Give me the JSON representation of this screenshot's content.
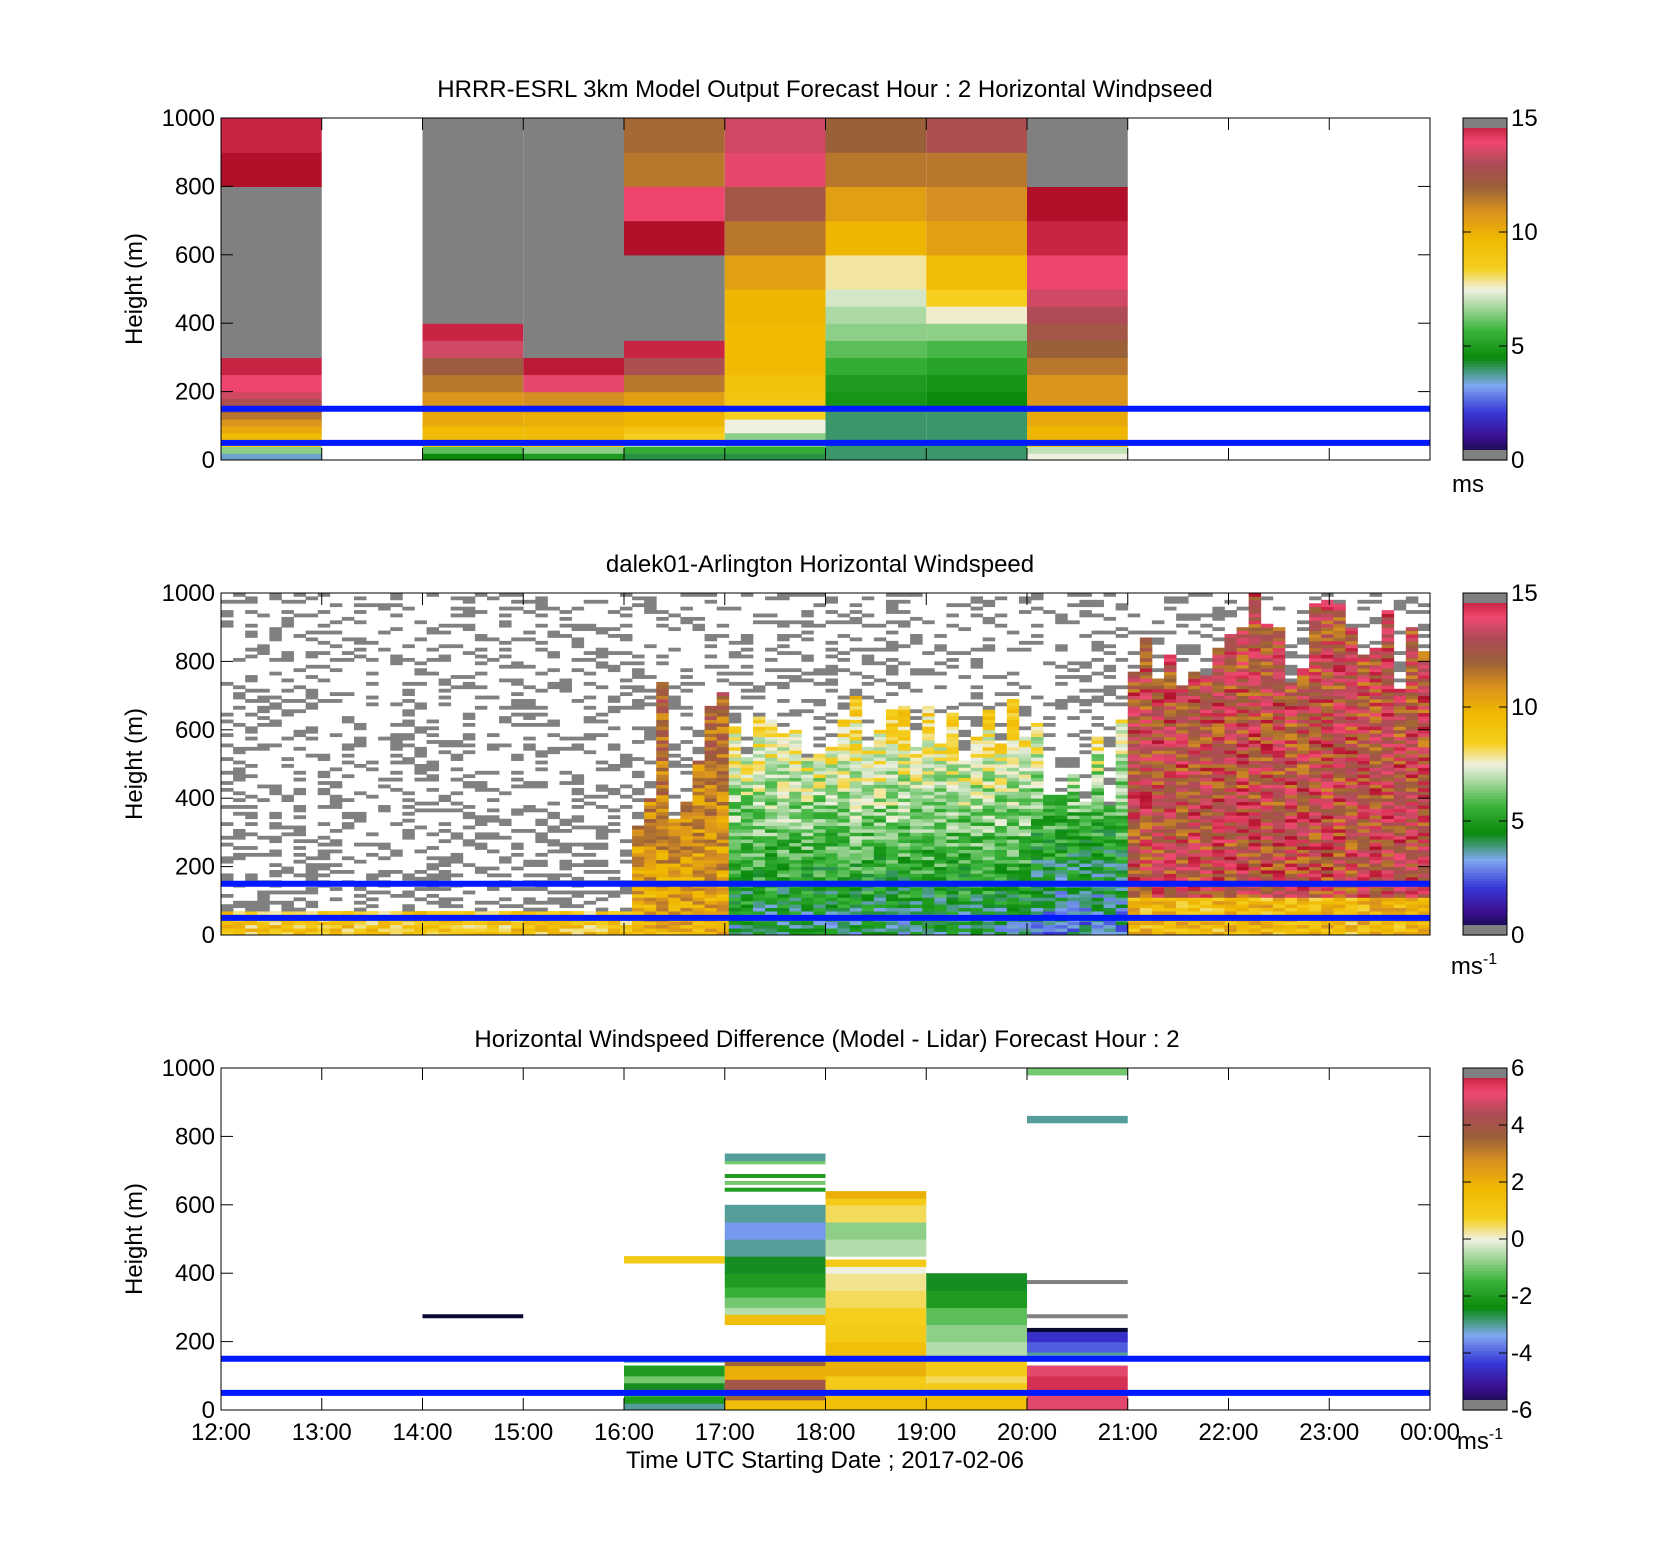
{
  "xlabel": "Time UTC  Starting Date ; 2017-02-06",
  "x_ticks": [
    "12:00",
    "13:00",
    "14:00",
    "15:00",
    "16:00",
    "17:00",
    "18:00",
    "19:00",
    "20:00",
    "21:00",
    "22:00",
    "23:00",
    "00:00"
  ],
  "reference_lines": {
    "heights_m": [
      150,
      50
    ],
    "color": "#0019ff"
  },
  "chart_data": [
    {
      "type": "heatmap",
      "title": "HRRR-ESRL 3km Model Output   Forecast Hour : 2 Horizontal Windpseed",
      "ylabel": "Height (m)",
      "ylim": [
        0,
        1000
      ],
      "y_ticks": [
        "0",
        "200",
        "400",
        "600",
        "800",
        "1000"
      ],
      "colorbar": {
        "min": 0,
        "max": 15,
        "ticks": [
          "0",
          "5",
          "10",
          "15"
        ],
        "unit": "ms",
        "unit_sup": ""
      },
      "na_color": "#808080",
      "columns": [
        {
          "hour": 12,
          "cells": [
            [
              0,
              20,
              3.5
            ],
            [
              20,
              40,
              6.5
            ],
            [
              40,
              60,
              8.5
            ],
            [
              60,
              80,
              9.5
            ],
            [
              80,
              100,
              10.2
            ],
            [
              100,
              120,
              10.8
            ],
            [
              120,
              140,
              11.5
            ],
            [
              140,
              160,
              12.5
            ],
            [
              160,
              180,
              12.8
            ],
            [
              180,
              200,
              13.5
            ],
            [
              200,
              250,
              14
            ],
            [
              250,
              300,
              14.6
            ],
            [
              300,
              800,
              null
            ],
            [
              800,
              900,
              15
            ],
            [
              900,
              1000,
              14.6
            ]
          ]
        },
        {
          "hour": 14,
          "cells": [
            [
              0,
              20,
              4.5
            ],
            [
              20,
              40,
              6
            ],
            [
              40,
              60,
              8.5
            ],
            [
              60,
              100,
              9.5
            ],
            [
              100,
              140,
              10.2
            ],
            [
              140,
              200,
              10.8
            ],
            [
              200,
              250,
              11.5
            ],
            [
              250,
              300,
              12.2
            ],
            [
              300,
              350,
              13.5
            ],
            [
              350,
              400,
              14.6
            ],
            [
              400,
              1000,
              null
            ]
          ]
        },
        {
          "hour": 15,
          "cells": [
            [
              0,
              20,
              5
            ],
            [
              20,
              40,
              6.5
            ],
            [
              40,
              60,
              8.5
            ],
            [
              60,
              100,
              9.5
            ],
            [
              100,
              140,
              10
            ],
            [
              140,
              200,
              11
            ],
            [
              200,
              250,
              13.8
            ],
            [
              250,
              300,
              14.8
            ],
            [
              300,
              1000,
              null
            ]
          ]
        },
        {
          "hour": 16,
          "cells": [
            [
              0,
              20,
              4.2
            ],
            [
              20,
              40,
              5.5
            ],
            [
              40,
              60,
              7
            ],
            [
              60,
              80,
              8.5
            ],
            [
              80,
              100,
              9
            ],
            [
              100,
              140,
              9.8
            ],
            [
              140,
              200,
              10.5
            ],
            [
              200,
              250,
              11.5
            ],
            [
              250,
              300,
              12.8
            ],
            [
              300,
              350,
              14.6
            ],
            [
              350,
              600,
              null
            ],
            [
              600,
              700,
              15
            ],
            [
              700,
              800,
              14
            ],
            [
              800,
              900,
              11.5
            ],
            [
              900,
              1000,
              11.8
            ]
          ]
        },
        {
          "hour": 17,
          "cells": [
            [
              0,
              20,
              4.2
            ],
            [
              20,
              40,
              5.5
            ],
            [
              40,
              80,
              6.5
            ],
            [
              80,
              120,
              7.5
            ],
            [
              120,
              150,
              8.5
            ],
            [
              150,
              200,
              9
            ],
            [
              200,
              250,
              9.2
            ],
            [
              250,
              400,
              9.6
            ],
            [
              400,
              500,
              9.8
            ],
            [
              500,
              600,
              10.5
            ],
            [
              600,
              700,
              11.5
            ],
            [
              700,
              800,
              12.5
            ],
            [
              800,
              900,
              13.8
            ],
            [
              900,
              1000,
              13.5
            ]
          ]
        },
        {
          "hour": 18,
          "cells": [
            [
              0,
              150,
              4
            ],
            [
              150,
              200,
              4.8
            ],
            [
              200,
              250,
              5
            ],
            [
              250,
              300,
              5.5
            ],
            [
              300,
              350,
              6
            ],
            [
              350,
              400,
              6.5
            ],
            [
              400,
              450,
              6.8
            ],
            [
              450,
              500,
              7.2
            ],
            [
              500,
              600,
              7.8
            ],
            [
              600,
              700,
              9.8
            ],
            [
              700,
              800,
              10.5
            ],
            [
              800,
              900,
              11.5
            ],
            [
              900,
              1000,
              12
            ]
          ]
        },
        {
          "hour": 19,
          "cells": [
            [
              0,
              150,
              4
            ],
            [
              150,
              200,
              4.5
            ],
            [
              200,
              250,
              4.8
            ],
            [
              250,
              300,
              5.2
            ],
            [
              300,
              350,
              5.8
            ],
            [
              350,
              400,
              6.5
            ],
            [
              400,
              450,
              7.6
            ],
            [
              450,
              500,
              8.5
            ],
            [
              500,
              600,
              9.5
            ],
            [
              600,
              700,
              10.5
            ],
            [
              700,
              800,
              11
            ],
            [
              800,
              900,
              11.5
            ],
            [
              900,
              1000,
              12.8
            ]
          ]
        },
        {
          "hour": 20,
          "cells": [
            [
              0,
              20,
              7.5
            ],
            [
              20,
              40,
              7
            ],
            [
              40,
              60,
              9
            ],
            [
              60,
              100,
              9.8
            ],
            [
              100,
              150,
              10.2
            ],
            [
              150,
              250,
              10.8
            ],
            [
              250,
              300,
              11.5
            ],
            [
              300,
              350,
              12
            ],
            [
              350,
              400,
              12.5
            ],
            [
              400,
              450,
              13
            ],
            [
              450,
              500,
              13.5
            ],
            [
              500,
              600,
              14
            ],
            [
              600,
              700,
              14.6
            ],
            [
              700,
              800,
              15
            ],
            [
              800,
              1000,
              null
            ]
          ]
        }
      ]
    },
    {
      "type": "heatmap",
      "title": "dalek01-Arlington  Horizontal Windspeed",
      "ylabel": "Height (m)",
      "ylim": [
        0,
        1000
      ],
      "y_ticks": [
        "0",
        "200",
        "400",
        "600",
        "800",
        "1000"
      ],
      "colorbar": {
        "min": 0,
        "max": 15,
        "ticks": [
          "0",
          "5",
          "10",
          "15"
        ],
        "unit": "ms",
        "unit_sup": "-1"
      },
      "na_color": "#808080"
    },
    {
      "type": "heatmap",
      "title": "Horizontal Windspeed Difference (Model - Lidar) Forecast Hour : 2",
      "ylabel": "Height (m)",
      "ylim": [
        0,
        1000
      ],
      "y_ticks": [
        "0",
        "200",
        "400",
        "600",
        "800",
        "1000"
      ],
      "colorbar": {
        "min": -6,
        "max": 6,
        "ticks": [
          "-6",
          "-4",
          "-2",
          "0",
          "2",
          "4",
          "6"
        ],
        "unit": "ms",
        "unit_sup": "-1"
      },
      "na_color": "#808080",
      "columns": [
        {
          "hour": 14,
          "cells": [
            [
              270,
              280,
              -6
            ]
          ]
        },
        {
          "hour": 16,
          "cells": [
            [
              0,
              20,
              -3
            ],
            [
              20,
              40,
              -2
            ],
            [
              40,
              60,
              -1.5
            ],
            [
              60,
              80,
              -2.5
            ],
            [
              80,
              100,
              -1
            ],
            [
              100,
              130,
              -2
            ],
            [
              140,
              150,
              -3
            ],
            [
              430,
              450,
              1
            ]
          ]
        },
        {
          "hour": 17,
          "cells": [
            [
              0,
              30,
              1.5
            ],
            [
              30,
              60,
              3.5
            ],
            [
              60,
              90,
              4
            ],
            [
              90,
              130,
              2
            ],
            [
              130,
              150,
              3.5
            ],
            [
              250,
              280,
              1.5
            ],
            [
              280,
              300,
              -0.5
            ],
            [
              300,
              330,
              -1
            ],
            [
              330,
              360,
              -1.5
            ],
            [
              360,
              400,
              -2
            ],
            [
              400,
              450,
              -2.5
            ],
            [
              450,
              500,
              -3
            ],
            [
              500,
              550,
              -3.5
            ],
            [
              550,
              600,
              -3
            ],
            [
              640,
              650,
              -2
            ],
            [
              660,
              670,
              -1
            ],
            [
              680,
              690,
              -2
            ],
            [
              720,
              730,
              -1
            ],
            [
              730,
              750,
              -3
            ]
          ]
        },
        {
          "hour": 18,
          "cells": [
            [
              0,
              50,
              1.5
            ],
            [
              50,
              100,
              1
            ],
            [
              100,
              150,
              2
            ],
            [
              150,
              200,
              1.5
            ],
            [
              200,
              250,
              1
            ],
            [
              250,
              300,
              0.8
            ],
            [
              300,
              350,
              0.5
            ],
            [
              350,
              400,
              0.3
            ],
            [
              400,
              420,
              0
            ],
            [
              420,
              440,
              1
            ],
            [
              450,
              500,
              -0.5
            ],
            [
              500,
              550,
              -0.8
            ],
            [
              550,
              600,
              0.5
            ],
            [
              600,
              620,
              1
            ],
            [
              620,
              640,
              2
            ]
          ]
        },
        {
          "hour": 19,
          "cells": [
            [
              0,
              50,
              1.5
            ],
            [
              50,
              80,
              1
            ],
            [
              80,
              100,
              0.5
            ],
            [
              100,
              150,
              1
            ],
            [
              150,
              200,
              -0.5
            ],
            [
              200,
              250,
              -0.8
            ],
            [
              250,
              300,
              -1.2
            ],
            [
              300,
              350,
              -2
            ],
            [
              350,
              400,
              -2.5
            ]
          ]
        },
        {
          "hour": 20,
          "cells": [
            [
              0,
              50,
              5
            ],
            [
              50,
              100,
              5.5
            ],
            [
              100,
              130,
              5
            ],
            [
              160,
              170,
              -3
            ],
            [
              170,
              200,
              -4
            ],
            [
              200,
              230,
              -4.5
            ],
            [
              230,
              240,
              -6
            ],
            [
              270,
              280,
              null
            ],
            [
              370,
              380,
              null
            ],
            [
              840,
              860,
              -3
            ],
            [
              980,
              1000,
              -1
            ]
          ]
        }
      ]
    }
  ]
}
